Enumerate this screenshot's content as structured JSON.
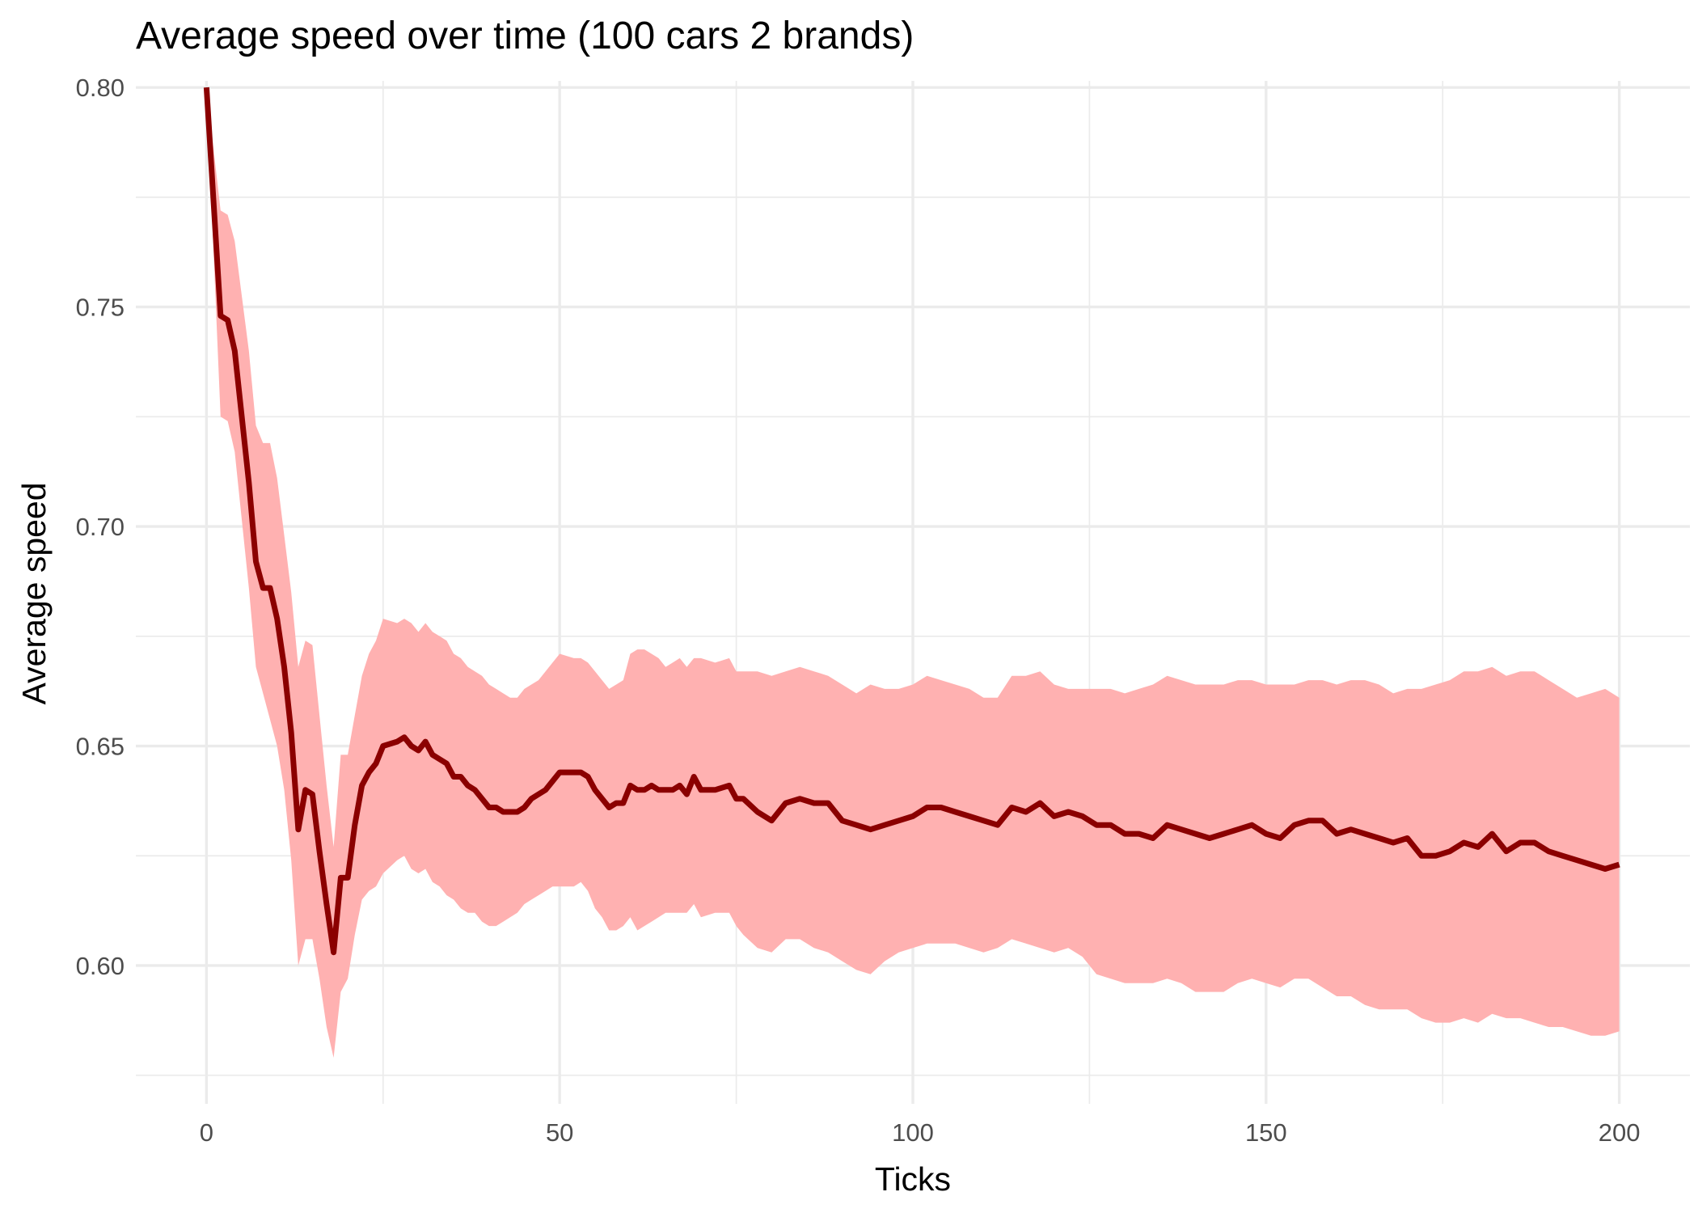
{
  "chart_data": {
    "type": "line",
    "title": "Average speed over time (100 cars 2 brands)",
    "xlabel": "Ticks",
    "ylabel": "Average speed",
    "xlim": [
      -10,
      210
    ],
    "ylim": [
      0.5685,
      0.8015
    ],
    "x_ticks": [
      0,
      50,
      100,
      150,
      200
    ],
    "y_ticks": [
      0.6,
      0.65,
      0.7,
      0.75,
      0.8
    ],
    "x_tick_labels": [
      "0",
      "50",
      "100",
      "150",
      "200"
    ],
    "y_tick_labels": [
      "0.60",
      "0.65",
      "0.70",
      "0.75",
      "0.80"
    ],
    "grid": true,
    "colors": {
      "line": "#8b0000",
      "band": "#ffb1b1",
      "grid": "#ebebeb"
    },
    "series": [
      {
        "name": "",
        "x": [
          0,
          2,
          3,
          4,
          6,
          7,
          8,
          9,
          10,
          11,
          12,
          13,
          14,
          15,
          16,
          17,
          18,
          19,
          20,
          21,
          22,
          23,
          24,
          25,
          27,
          28,
          29,
          30,
          31,
          32,
          33,
          34,
          35,
          36,
          37,
          38,
          39,
          40,
          41,
          42,
          43,
          44,
          45,
          46,
          47,
          48,
          49,
          50,
          52,
          53,
          54,
          55,
          56,
          57,
          58,
          59,
          60,
          61,
          62,
          63,
          64,
          65,
          66,
          67,
          68,
          69,
          70,
          72,
          74,
          75,
          76,
          78,
          80,
          82,
          84,
          86,
          88,
          90,
          92,
          94,
          96,
          98,
          100,
          102,
          104,
          106,
          108,
          110,
          112,
          114,
          116,
          118,
          120,
          122,
          124,
          126,
          128,
          130,
          132,
          134,
          136,
          138,
          140,
          142,
          144,
          146,
          148,
          150,
          152,
          154,
          156,
          158,
          160,
          162,
          164,
          166,
          168,
          170,
          172,
          174,
          176,
          178,
          180,
          182,
          184,
          186,
          188,
          190,
          192,
          194,
          196,
          198,
          200
        ],
        "y": [
          0.8,
          0.748,
          0.747,
          0.74,
          0.71,
          0.692,
          0.686,
          0.686,
          0.679,
          0.668,
          0.653,
          0.631,
          0.64,
          0.639,
          0.626,
          0.614,
          0.603,
          0.62,
          0.62,
          0.632,
          0.641,
          0.644,
          0.646,
          0.65,
          0.651,
          0.652,
          0.65,
          0.649,
          0.651,
          0.648,
          0.647,
          0.646,
          0.643,
          0.643,
          0.641,
          0.64,
          0.638,
          0.636,
          0.636,
          0.635,
          0.635,
          0.635,
          0.636,
          0.638,
          0.639,
          0.64,
          0.642,
          0.644,
          0.644,
          0.644,
          0.643,
          0.64,
          0.638,
          0.636,
          0.637,
          0.637,
          0.641,
          0.64,
          0.64,
          0.641,
          0.64,
          0.64,
          0.64,
          0.641,
          0.639,
          0.643,
          0.64,
          0.64,
          0.641,
          0.638,
          0.638,
          0.635,
          0.633,
          0.637,
          0.638,
          0.637,
          0.637,
          0.633,
          0.632,
          0.631,
          0.632,
          0.633,
          0.634,
          0.636,
          0.636,
          0.635,
          0.634,
          0.633,
          0.632,
          0.636,
          0.635,
          0.637,
          0.634,
          0.635,
          0.634,
          0.632,
          0.632,
          0.63,
          0.63,
          0.629,
          0.632,
          0.631,
          0.63,
          0.629,
          0.63,
          0.631,
          0.632,
          0.63,
          0.629,
          0.632,
          0.633,
          0.633,
          0.63,
          0.631,
          0.63,
          0.629,
          0.628,
          0.629,
          0.625,
          0.625,
          0.626,
          0.628,
          0.627,
          0.63,
          0.626,
          0.628,
          0.628,
          0.626,
          0.625,
          0.624,
          0.623,
          0.622,
          0.623
        ],
        "lower": [
          0.8,
          0.725,
          0.724,
          0.717,
          0.686,
          0.668,
          0.662,
          0.656,
          0.65,
          0.64,
          0.624,
          0.6,
          0.606,
          0.606,
          0.597,
          0.586,
          0.579,
          0.594,
          0.597,
          0.607,
          0.615,
          0.617,
          0.618,
          0.621,
          0.624,
          0.625,
          0.622,
          0.621,
          0.622,
          0.619,
          0.618,
          0.616,
          0.615,
          0.613,
          0.612,
          0.612,
          0.61,
          0.609,
          0.609,
          0.61,
          0.611,
          0.612,
          0.614,
          0.615,
          0.616,
          0.617,
          0.618,
          0.618,
          0.618,
          0.619,
          0.617,
          0.613,
          0.611,
          0.608,
          0.608,
          0.609,
          0.611,
          0.608,
          0.609,
          0.61,
          0.611,
          0.612,
          0.612,
          0.612,
          0.612,
          0.614,
          0.611,
          0.612,
          0.612,
          0.609,
          0.607,
          0.604,
          0.603,
          0.606,
          0.606,
          0.604,
          0.603,
          0.601,
          0.599,
          0.598,
          0.601,
          0.603,
          0.604,
          0.605,
          0.605,
          0.605,
          0.604,
          0.603,
          0.604,
          0.606,
          0.605,
          0.604,
          0.603,
          0.604,
          0.602,
          0.598,
          0.597,
          0.596,
          0.596,
          0.596,
          0.597,
          0.596,
          0.594,
          0.594,
          0.594,
          0.596,
          0.597,
          0.596,
          0.595,
          0.597,
          0.597,
          0.595,
          0.593,
          0.593,
          0.591,
          0.59,
          0.59,
          0.59,
          0.588,
          0.587,
          0.587,
          0.588,
          0.587,
          0.589,
          0.588,
          0.588,
          0.587,
          0.586,
          0.586,
          0.585,
          0.584,
          0.584,
          0.585
        ],
        "upper": [
          0.8,
          0.772,
          0.771,
          0.765,
          0.74,
          0.723,
          0.719,
          0.719,
          0.711,
          0.698,
          0.685,
          0.668,
          0.674,
          0.673,
          0.657,
          0.641,
          0.627,
          0.648,
          0.648,
          0.657,
          0.666,
          0.671,
          0.674,
          0.679,
          0.678,
          0.679,
          0.678,
          0.676,
          0.678,
          0.676,
          0.675,
          0.674,
          0.671,
          0.67,
          0.668,
          0.667,
          0.666,
          0.664,
          0.663,
          0.662,
          0.661,
          0.661,
          0.663,
          0.664,
          0.665,
          0.667,
          0.669,
          0.671,
          0.67,
          0.67,
          0.669,
          0.667,
          0.665,
          0.663,
          0.664,
          0.665,
          0.671,
          0.672,
          0.672,
          0.671,
          0.67,
          0.668,
          0.669,
          0.67,
          0.668,
          0.67,
          0.67,
          0.669,
          0.67,
          0.667,
          0.667,
          0.667,
          0.666,
          0.667,
          0.668,
          0.667,
          0.666,
          0.664,
          0.662,
          0.664,
          0.663,
          0.663,
          0.664,
          0.666,
          0.665,
          0.664,
          0.663,
          0.661,
          0.661,
          0.666,
          0.666,
          0.667,
          0.664,
          0.663,
          0.663,
          0.663,
          0.663,
          0.662,
          0.663,
          0.664,
          0.666,
          0.665,
          0.664,
          0.664,
          0.664,
          0.665,
          0.665,
          0.664,
          0.664,
          0.664,
          0.665,
          0.665,
          0.664,
          0.665,
          0.665,
          0.664,
          0.662,
          0.663,
          0.663,
          0.664,
          0.665,
          0.667,
          0.667,
          0.668,
          0.666,
          0.667,
          0.667,
          0.665,
          0.663,
          0.661,
          0.662,
          0.663,
          0.661
        ]
      }
    ]
  }
}
